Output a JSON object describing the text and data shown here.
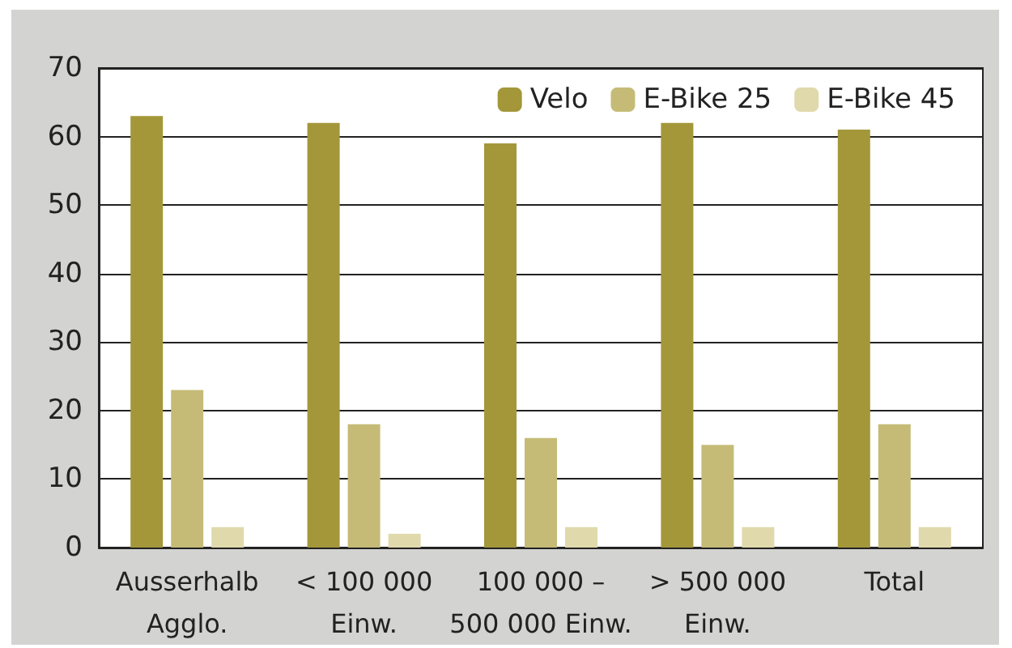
{
  "chart_data": {
    "type": "bar",
    "categories": [
      "Ausserhalb\nAgglo.",
      "< 100 000\nEinw.",
      "100 000 –\n500 000 Einw.",
      "> 500 000\nEinw.",
      "Total"
    ],
    "series": [
      {
        "name": "Velo",
        "color": "#a3973a",
        "values": [
          63,
          62,
          59,
          62,
          61
        ]
      },
      {
        "name": "E-Bike 25",
        "color": "#c5bb77",
        "values": [
          23,
          18,
          16,
          15,
          18
        ]
      },
      {
        "name": "E-Bike 45",
        "color": "#e0d9ac",
        "values": [
          3,
          2,
          3,
          3,
          3
        ]
      }
    ],
    "ylim": [
      0,
      70
    ],
    "yticks": [
      0,
      10,
      20,
      30,
      40,
      50,
      60,
      70
    ],
    "grid": "y",
    "legend": "top right"
  }
}
